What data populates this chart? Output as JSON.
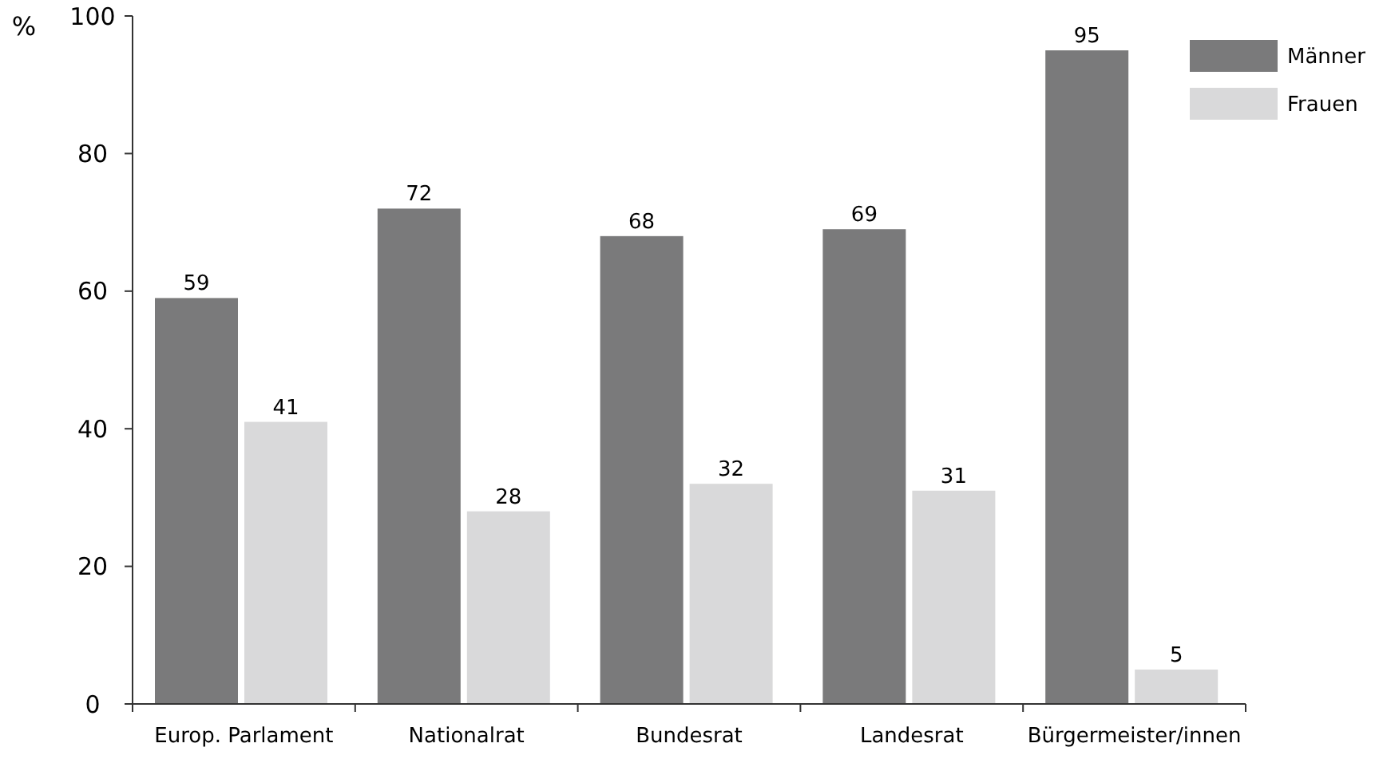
{
  "chart_data": {
    "type": "bar",
    "ylabel": "%",
    "categories": [
      "Europ. Parlament",
      "Nationalrat",
      "Bundesrat",
      "Landesrat",
      "Bürgermeister/innen"
    ],
    "series": [
      {
        "name": "Männer",
        "color": "#7a7a7b",
        "values": [
          59,
          72,
          68,
          69,
          95
        ]
      },
      {
        "name": "Frauen",
        "color": "#d9d9da",
        "values": [
          41,
          28,
          32,
          31,
          5
        ]
      }
    ],
    "ylim": [
      0,
      100
    ],
    "yticks": [
      0,
      20,
      40,
      60,
      80,
      100
    ],
    "data_labels": true,
    "legend": "top right",
    "grid": false
  }
}
